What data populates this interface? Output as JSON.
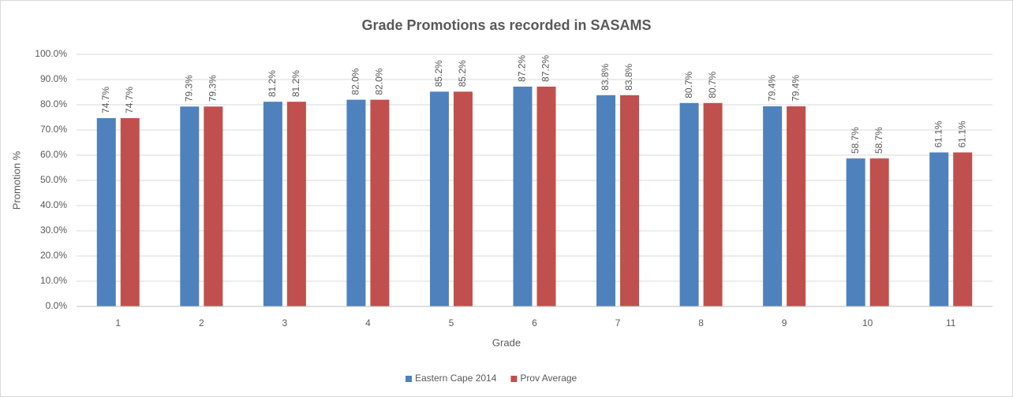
{
  "chart_data": {
    "type": "bar",
    "title": "Grade Promotions as recorded in SASAMS",
    "x_label": "Grade",
    "y_label": "Promotion %",
    "categories": [
      "1",
      "2",
      "3",
      "4",
      "5",
      "6",
      "7",
      "8",
      "9",
      "10",
      "11"
    ],
    "series": [
      {
        "name": "Eastern Cape 2014",
        "color": "#4f81bd",
        "values": [
          74.7,
          79.3,
          81.2,
          82.0,
          85.2,
          87.2,
          83.8,
          80.7,
          79.4,
          58.7,
          61.1
        ],
        "value_labels": [
          "74.7%",
          "79.3%",
          "81.2%",
          "82.0%",
          "85.2%",
          "87.2%",
          "83.8%",
          "80.7%",
          "79.4%",
          "58.7%",
          "61.1%"
        ]
      },
      {
        "name": "Prov Average",
        "color": "#c0504d",
        "values": [
          74.7,
          79.3,
          81.2,
          82.0,
          85.2,
          87.2,
          83.8,
          80.7,
          79.4,
          58.7,
          61.1
        ],
        "value_labels": [
          "74.7%",
          "79.3%",
          "81.2%",
          "82.0%",
          "85.2%",
          "87.2%",
          "83.8%",
          "80.7%",
          "79.4%",
          "58.7%",
          "61.1%"
        ]
      }
    ],
    "ylim": [
      0,
      100
    ],
    "yticks": [
      {
        "value": 0,
        "label": "0.0%"
      },
      {
        "value": 10,
        "label": "10.0%"
      },
      {
        "value": 20,
        "label": "20.0%"
      },
      {
        "value": 30,
        "label": "30.0%"
      },
      {
        "value": 40,
        "label": "40.0%"
      },
      {
        "value": 50,
        "label": "50.0%"
      },
      {
        "value": 60,
        "label": "60.0%"
      },
      {
        "value": 70,
        "label": "70.0%"
      },
      {
        "value": 80,
        "label": "80.0%"
      },
      {
        "value": 90,
        "label": "90.0%"
      },
      {
        "value": 100,
        "label": "100.0%"
      }
    ],
    "grid": true,
    "legend": "bottom"
  }
}
